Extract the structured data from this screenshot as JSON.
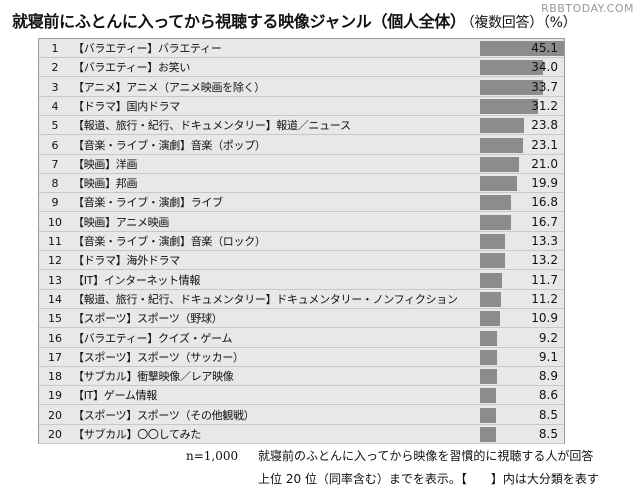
{
  "title": {
    "main": "就寝前にふとんに入ってから視聴する映像ジャンル（個人全体）",
    "sub": "（複数回答）（%）"
  },
  "watermark": "RBBTODAY.COM",
  "chart_data": {
    "type": "bar",
    "orientation": "horizontal",
    "title": "就寝前にふとんに入ってから視聴する映像ジャンル（個人全体）（複数回答）（%）",
    "xlim": [
      0,
      100
    ],
    "rows": [
      {
        "rank": "1",
        "label": "【バラエティー】バラエティー",
        "value": 45.1,
        "value_label": "45.1"
      },
      {
        "rank": "2",
        "label": "【バラエティー】お笑い",
        "value": 34.0,
        "value_label": "34.0"
      },
      {
        "rank": "3",
        "label": "【アニメ】アニメ（アニメ映画を除く）",
        "value": 33.7,
        "value_label": "33.7"
      },
      {
        "rank": "4",
        "label": "【ドラマ】国内ドラマ",
        "value": 31.2,
        "value_label": "31.2"
      },
      {
        "rank": "5",
        "label": "【報道、旅行・紀行、ドキュメンタリー】報道／ニュース",
        "value": 23.8,
        "value_label": "23.8"
      },
      {
        "rank": "6",
        "label": "【音楽・ライブ・演劇】音楽（ポップ）",
        "value": 23.1,
        "value_label": "23.1"
      },
      {
        "rank": "7",
        "label": "【映画】洋画",
        "value": 21.0,
        "value_label": "21.0"
      },
      {
        "rank": "8",
        "label": "【映画】邦画",
        "value": 19.9,
        "value_label": "19.9"
      },
      {
        "rank": "9",
        "label": "【音楽・ライブ・演劇】ライブ",
        "value": 16.8,
        "value_label": "16.8"
      },
      {
        "rank": "10",
        "label": "【映画】アニメ映画",
        "value": 16.7,
        "value_label": "16.7"
      },
      {
        "rank": "11",
        "label": "【音楽・ライブ・演劇】音楽（ロック）",
        "value": 13.3,
        "value_label": "13.3"
      },
      {
        "rank": "12",
        "label": "【ドラマ】海外ドラマ",
        "value": 13.2,
        "value_label": "13.2"
      },
      {
        "rank": "13",
        "label": "【IT】インターネット情報",
        "value": 11.7,
        "value_label": "11.7"
      },
      {
        "rank": "14",
        "label": "【報道、旅行・紀行、ドキュメンタリー】ドキュメンタリー・ノンフィクション",
        "value": 11.2,
        "value_label": "11.2"
      },
      {
        "rank": "15",
        "label": "【スポーツ】スポーツ（野球）",
        "value": 10.9,
        "value_label": "10.9"
      },
      {
        "rank": "16",
        "label": "【バラエティー】クイズ・ゲーム",
        "value": 9.2,
        "value_label": "9.2"
      },
      {
        "rank": "17",
        "label": "【スポーツ】スポーツ（サッカー）",
        "value": 9.1,
        "value_label": "9.1"
      },
      {
        "rank": "18",
        "label": "【サブカル】衝撃映像／レア映像",
        "value": 8.9,
        "value_label": "8.9"
      },
      {
        "rank": "19",
        "label": "【IT】ゲーム情報",
        "value": 8.6,
        "value_label": "8.6"
      },
      {
        "rank": "20",
        "label": "【スポーツ】スポーツ（その他観戦）",
        "value": 8.5,
        "value_label": "8.5"
      },
      {
        "rank": "20",
        "label": "【サブカル】〇〇してみた",
        "value": 8.5,
        "value_label": "8.5"
      }
    ],
    "bar_color": "#8c8c8c",
    "grid": false,
    "legend": "none"
  },
  "footer": {
    "n": "n=1,000",
    "line1": "就寝前のふとんに入ってから映像を習慣的に視聴する人が回答",
    "line2": "上位 20 位（同率含む）までを表示。【　　】内は大分類を表す"
  }
}
